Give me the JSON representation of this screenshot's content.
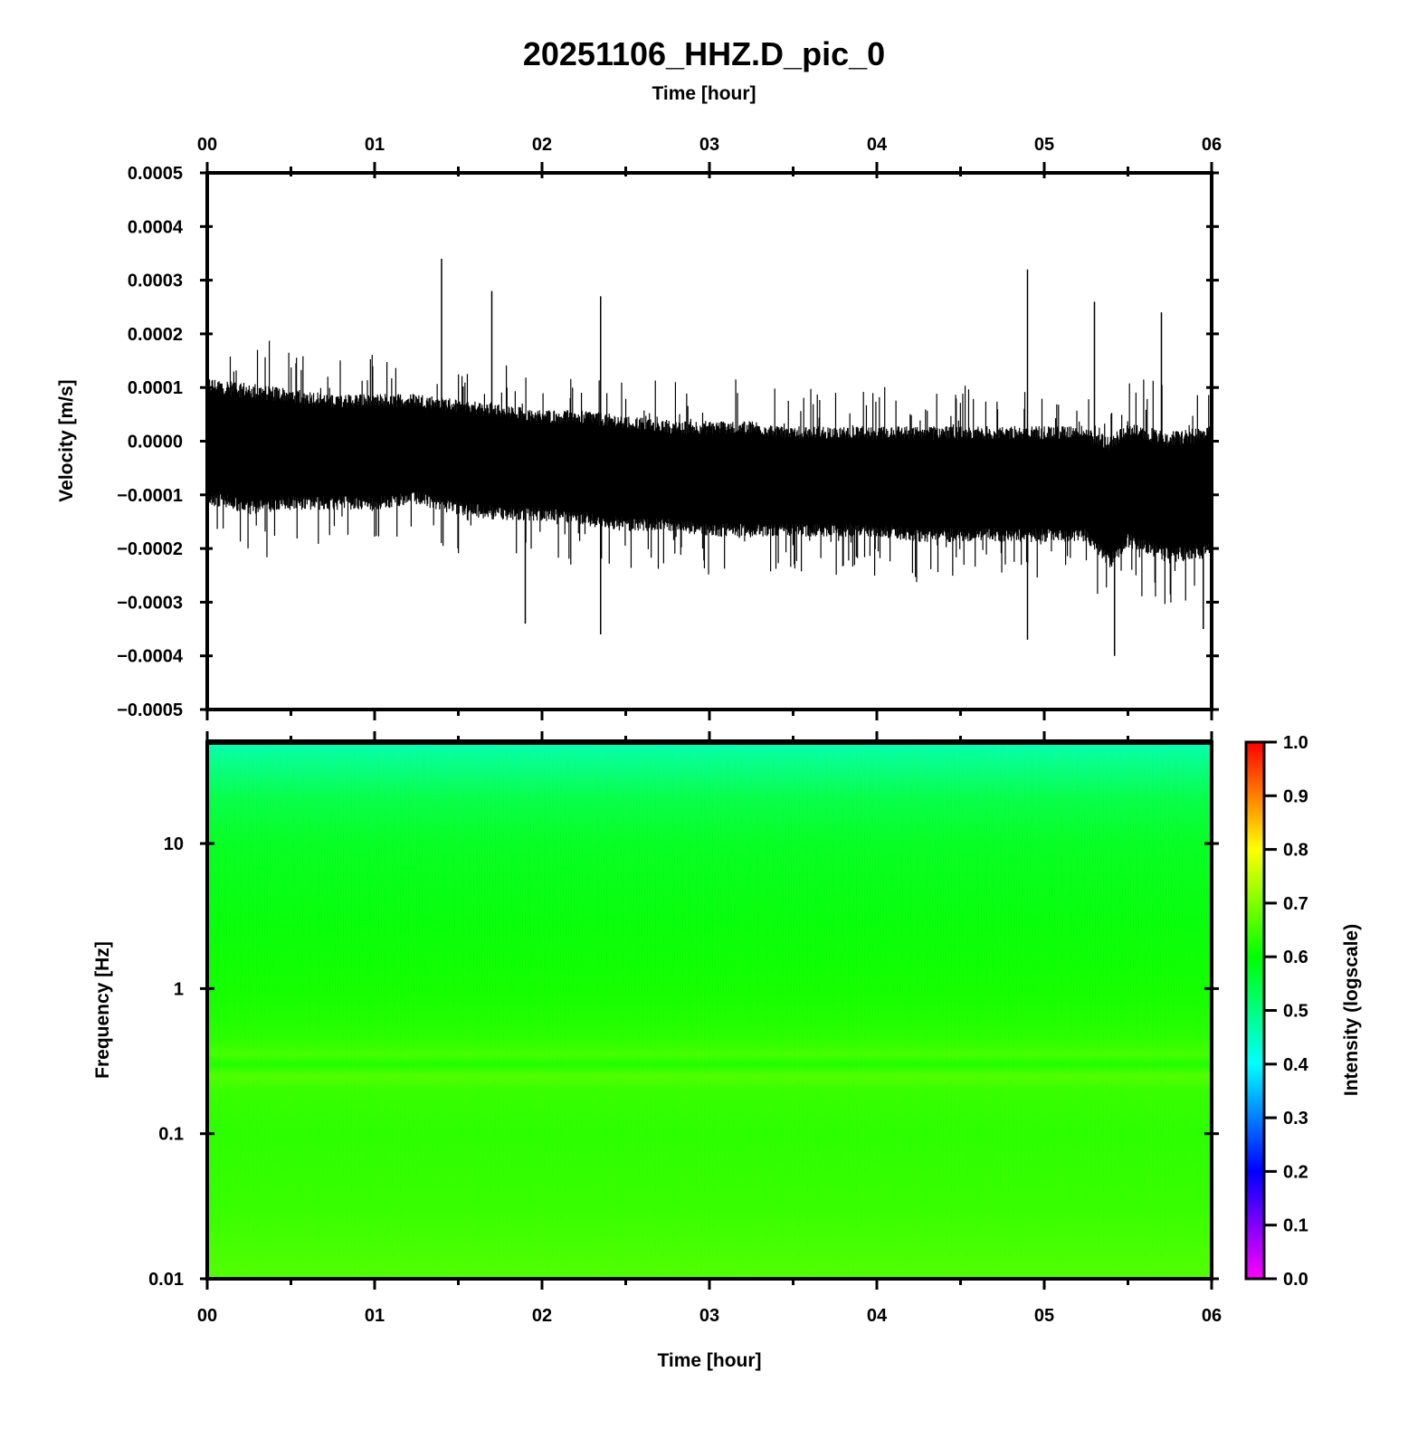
{
  "title": "20251106_HHZ.D_pic_0",
  "chart_data": [
    {
      "type": "line",
      "title": "20251106_HHZ.D_pic_0",
      "xlabel": "Time [hour]",
      "ylabel": "Velocity [m/s]",
      "x_ticks": [
        "00",
        "01",
        "02",
        "03",
        "04",
        "05",
        "06"
      ],
      "xlim": [
        0,
        6
      ],
      "ylim": [
        -0.0005,
        0.0005
      ],
      "y_ticks": [
        "0.0005",
        "0.0004",
        "0.0003",
        "0.0002",
        "0.0001",
        "0.0000",
        "−0.0001",
        "−0.0002",
        "−0.0003",
        "−0.0004",
        "−0.0005"
      ],
      "y_tick_values": [
        0.0005,
        0.0004,
        0.0003,
        0.0002,
        0.0001,
        0.0,
        -0.0001,
        -0.0002,
        -0.0003,
        -0.0004,
        -0.0005
      ],
      "grid": false,
      "line_color": "#000000",
      "envelope": {
        "x": [
          0,
          0.25,
          0.5,
          0.75,
          1.0,
          1.25,
          1.5,
          1.75,
          2.0,
          2.25,
          2.5,
          2.75,
          3.0,
          3.25,
          3.5,
          3.75,
          4.0,
          4.25,
          4.5,
          4.75,
          5.0,
          5.25,
          5.4,
          5.5,
          5.75,
          6.0
        ],
        "upper": [
          0.00012,
          0.00011,
          0.0001,
          9e-05,
          9e-05,
          9e-05,
          8e-05,
          7e-05,
          6e-05,
          6e-05,
          5e-05,
          4e-05,
          4e-05,
          4e-05,
          3e-05,
          3e-05,
          3e-05,
          3e-05,
          3e-05,
          3e-05,
          3e-05,
          3e-05,
          1e-05,
          4e-05,
          2e-05,
          3e-05
        ],
        "lower": [
          -0.00012,
          -0.00014,
          -0.00013,
          -0.00013,
          -0.00013,
          -0.00012,
          -0.00014,
          -0.00015,
          -0.00015,
          -0.00016,
          -0.00017,
          -0.00017,
          -0.00018,
          -0.00018,
          -0.00018,
          -0.00018,
          -0.00018,
          -0.00019,
          -0.00019,
          -0.00019,
          -0.00019,
          -0.00019,
          -0.00024,
          -0.0002,
          -0.00023,
          -0.00022
        ]
      },
      "spikes": [
        {
          "x": 1.4,
          "y": 0.00034
        },
        {
          "x": 1.7,
          "y": 0.00028
        },
        {
          "x": 1.9,
          "y": -0.00034
        },
        {
          "x": 2.35,
          "y": -0.00036
        },
        {
          "x": 2.35,
          "y": 0.00027
        },
        {
          "x": 4.9,
          "y": 0.00032
        },
        {
          "x": 4.9,
          "y": -0.00037
        },
        {
          "x": 5.3,
          "y": 0.00026
        },
        {
          "x": 5.42,
          "y": -0.0004
        },
        {
          "x": 5.7,
          "y": 0.00024
        },
        {
          "x": 5.95,
          "y": -0.00035
        }
      ]
    },
    {
      "type": "heatmap",
      "xlabel": "Time [hour]",
      "ylabel": "Frequency [Hz]",
      "x_ticks": [
        "00",
        "01",
        "02",
        "03",
        "04",
        "05",
        "06"
      ],
      "xlim": [
        0,
        6
      ],
      "ylim": [
        0.01,
        50
      ],
      "yscale": "log",
      "y_ticks": [
        "10",
        "1",
        "0.1",
        "0.01"
      ],
      "y_tick_values": [
        10,
        1,
        0.1,
        0.01
      ],
      "intensity_profile": {
        "frequency": [
          50,
          40,
          20,
          10,
          3,
          1,
          0.6,
          0.45,
          0.35,
          0.3,
          0.25,
          0.2,
          0.1,
          0.03,
          0.01
        ],
        "intensity": [
          0.45,
          0.48,
          0.54,
          0.57,
          0.59,
          0.61,
          0.62,
          0.63,
          0.65,
          0.62,
          0.66,
          0.64,
          0.63,
          0.64,
          0.66
        ]
      },
      "colorbar": {
        "label": "Intensity (logscale)",
        "ticks": [
          "1.0",
          "0.9",
          "0.8",
          "0.7",
          "0.6",
          "0.5",
          "0.4",
          "0.3",
          "0.2",
          "0.1",
          "0.0"
        ],
        "tick_values": [
          1.0,
          0.9,
          0.8,
          0.7,
          0.6,
          0.5,
          0.4,
          0.3,
          0.2,
          0.1,
          0.0
        ],
        "range": [
          0,
          1
        ],
        "colors": [
          "#ff00ff",
          "#0000ff",
          "#00ffff",
          "#00ff00",
          "#ffff00",
          "#ff0000"
        ]
      }
    }
  ]
}
